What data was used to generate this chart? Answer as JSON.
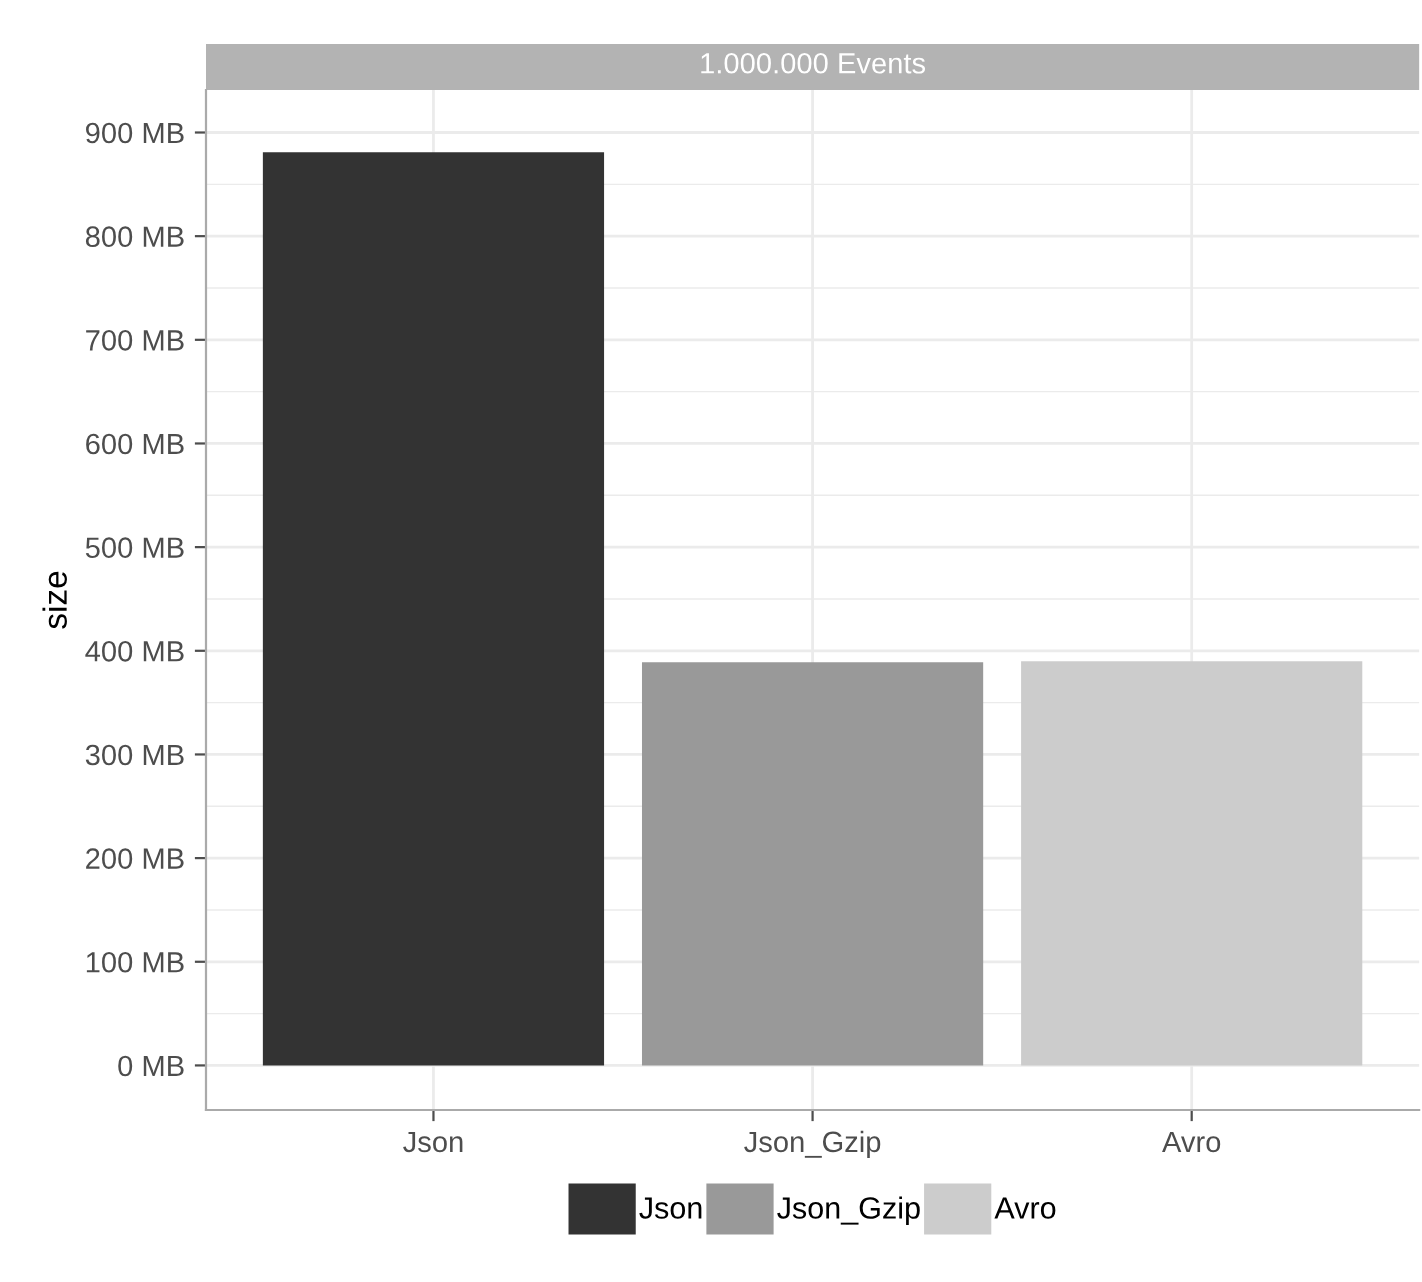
{
  "chart_data": {
    "type": "bar",
    "title": "1.000.000 Events",
    "ylabel": "size",
    "categories": [
      "Json",
      "Json_Gzip",
      "Avro"
    ],
    "series": [
      {
        "name": "Json",
        "color": "#333333",
        "values": [
          881,
          null,
          null
        ]
      },
      {
        "name": "Json_Gzip",
        "color": "#999999",
        "values": [
          null,
          389,
          null
        ]
      },
      {
        "name": "Avro",
        "color": "#cccccc",
        "values": [
          null,
          null,
          390
        ]
      }
    ],
    "ylim": [
      -43,
      941
    ],
    "yticks": [
      {
        "value": 0,
        "label": "0 MB"
      },
      {
        "value": 100,
        "label": "100 MB"
      },
      {
        "value": 200,
        "label": "200 MB"
      },
      {
        "value": 300,
        "label": "300 MB"
      },
      {
        "value": 400,
        "label": "400 MB"
      },
      {
        "value": 500,
        "label": "500 MB"
      },
      {
        "value": 600,
        "label": "600 MB"
      },
      {
        "value": 700,
        "label": "700 MB"
      },
      {
        "value": 800,
        "label": "800 MB"
      },
      {
        "value": 900,
        "label": "900 MB"
      }
    ],
    "grid": true,
    "legend": "bottom"
  }
}
